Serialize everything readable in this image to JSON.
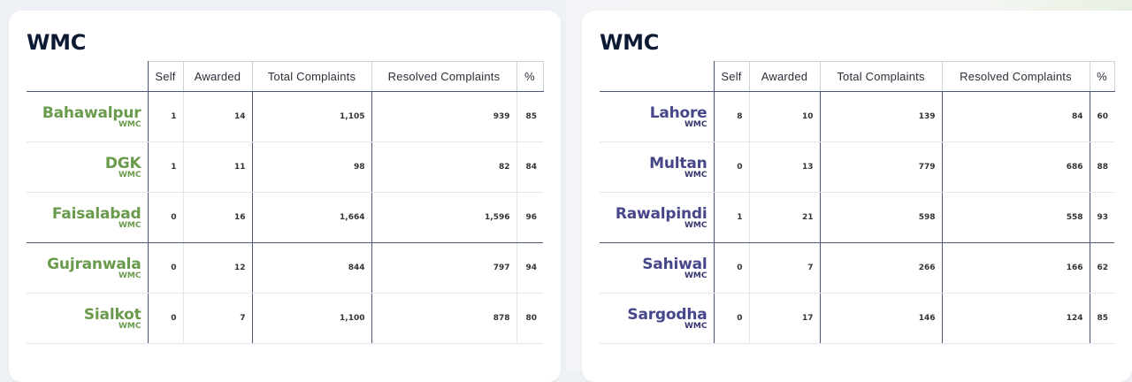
{
  "panels": [
    {
      "title": "WMC",
      "headers": [
        "Self",
        "Awarded",
        "Total Complaints",
        "Resolved Complaints",
        "%"
      ],
      "rows": [
        {
          "name": "Bahawalpur",
          "sub": "WMC",
          "self": "1",
          "awarded": "14",
          "total": "1,105",
          "resolved": "939",
          "pct": "85"
        },
        {
          "name": "DGK",
          "sub": "WMC",
          "self": "1",
          "awarded": "11",
          "total": "98",
          "resolved": "82",
          "pct": "84"
        },
        {
          "name": "Faisalabad",
          "sub": "WMC",
          "self": "0",
          "awarded": "16",
          "total": "1,664",
          "resolved": "1,596",
          "pct": "96"
        },
        {
          "name": "Gujranwala",
          "sub": "WMC",
          "self": "0",
          "awarded": "12",
          "total": "844",
          "resolved": "797",
          "pct": "94"
        },
        {
          "name": "Sialkot",
          "sub": "WMC",
          "self": "0",
          "awarded": "7",
          "total": "1,100",
          "resolved": "878",
          "pct": "80"
        }
      ]
    },
    {
      "title": "WMC",
      "headers": [
        "Self",
        "Awarded",
        "Total Complaints",
        "Resolved Complaints",
        "%"
      ],
      "rows": [
        {
          "name": "Lahore",
          "sub": "WMC",
          "self": "8",
          "awarded": "10",
          "total": "139",
          "resolved": "84",
          "pct": "60"
        },
        {
          "name": "Multan",
          "sub": "WMC",
          "self": "0",
          "awarded": "13",
          "total": "779",
          "resolved": "686",
          "pct": "88"
        },
        {
          "name": "Rawalpindi",
          "sub": "WMC",
          "self": "1",
          "awarded": "21",
          "total": "598",
          "resolved": "558",
          "pct": "93"
        },
        {
          "name": "Sahiwal",
          "sub": "WMC",
          "self": "0",
          "awarded": "7",
          "total": "266",
          "resolved": "166",
          "pct": "62"
        },
        {
          "name": "Sargodha",
          "sub": "WMC",
          "self": "0",
          "awarded": "17",
          "total": "146",
          "resolved": "124",
          "pct": "85"
        }
      ]
    }
  ],
  "colors": {
    "left_city": "#6a9a4c",
    "right_city": "#46468a",
    "title": "#0d1a33"
  }
}
